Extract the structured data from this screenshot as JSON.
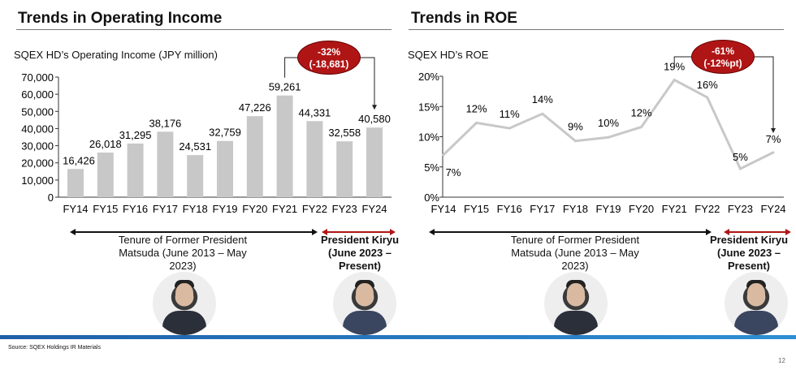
{
  "left": {
    "title": "Trends in Operating Income",
    "subtitle": "SQEX HD’s Operating Income (JPY million)",
    "callout": {
      "line1": "-32%",
      "line2": "(-18,681)"
    }
  },
  "right": {
    "title": "Trends in ROE",
    "subtitle": "SQEX HD’s ROE",
    "callout": {
      "line1": "-61%",
      "line2": "(-12%pt)"
    }
  },
  "tenure_former": "Tenure of Former President Matsuda (June 2013 – May 2023)",
  "tenure_current": "President Kiryu (June 2023 – Present)",
  "source": "Source: SQEX Holdings IR Materials",
  "page_number": "12",
  "colors": {
    "bar": "#c8c8c8",
    "line": "#c8c8c8",
    "callout": "#b01515",
    "accent_bar": "#1f5fa8",
    "tenure_current_arrow": "#b01515"
  },
  "chart_data": [
    {
      "type": "bar",
      "title": "SQEX HD’s Operating Income (JPY million)",
      "categories": [
        "FY14",
        "FY15",
        "FY16",
        "FY17",
        "FY18",
        "FY19",
        "FY20",
        "FY21",
        "FY22",
        "FY23",
        "FY24"
      ],
      "values": [
        16426,
        26018,
        31295,
        38176,
        24531,
        32759,
        47226,
        59261,
        44331,
        32558,
        40580
      ],
      "labels": [
        "16,426",
        "26,018",
        "31,295",
        "38,176",
        "24,531",
        "32,759",
        "47,226",
        "59,261",
        "44,331",
        "32,558",
        "40,580"
      ],
      "ylim": [
        0,
        70000
      ],
      "yticks": [
        "0",
        "10,000",
        "20,000",
        "30,000",
        "40,000",
        "50,000",
        "60,000",
        "70,000"
      ],
      "grid": false
    },
    {
      "type": "line",
      "title": "SQEX HD’s ROE",
      "categories": [
        "FY14",
        "FY15",
        "FY16",
        "FY17",
        "FY18",
        "FY19",
        "FY20",
        "FY21",
        "FY22",
        "FY23",
        "FY24"
      ],
      "values": [
        7.0,
        12.3,
        11.4,
        13.8,
        9.3,
        9.9,
        11.6,
        19.4,
        16.5,
        4.7,
        7.4
      ],
      "labels": [
        "7%",
        "12%",
        "11%",
        "14%",
        "9%",
        "10%",
        "12%",
        "19%",
        "16%",
        "5%",
        "7%"
      ],
      "ylim": [
        0,
        20
      ],
      "yticks": [
        "0%",
        "5%",
        "10%",
        "15%",
        "20%"
      ],
      "grid": false
    }
  ]
}
